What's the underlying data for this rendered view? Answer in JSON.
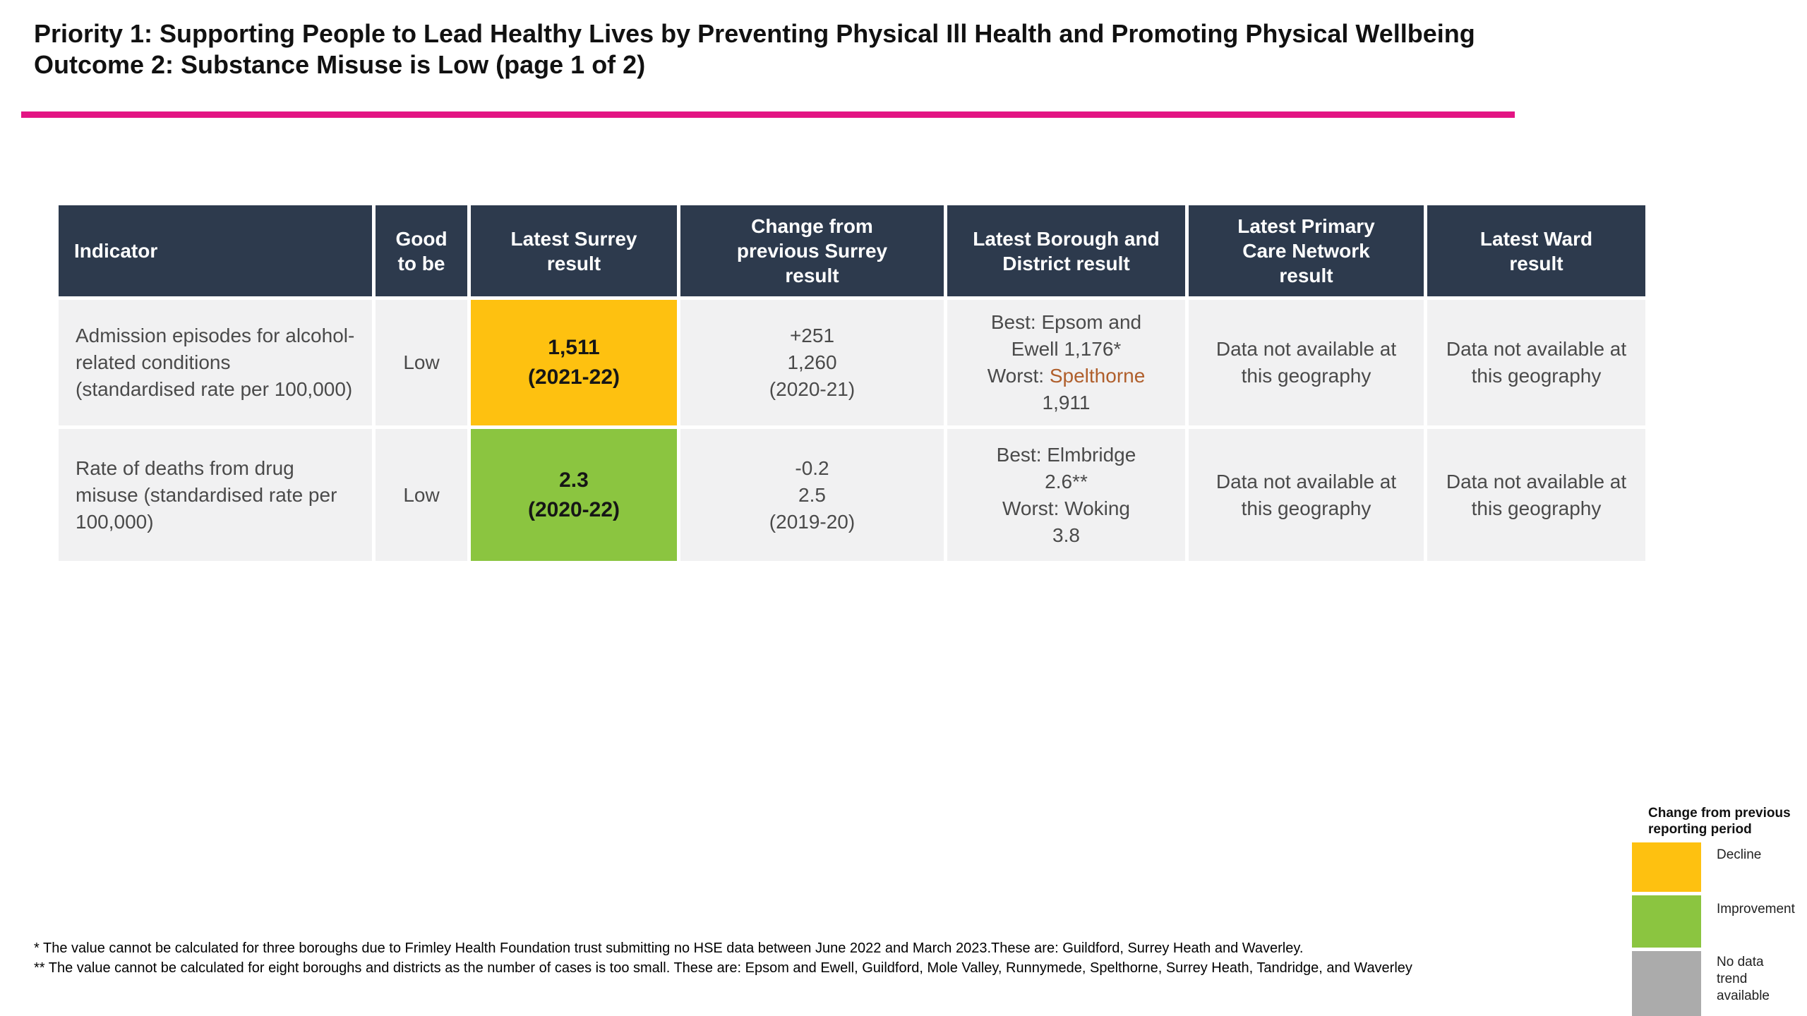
{
  "title": {
    "line1": "Priority 1: Supporting People to Lead Healthy Lives by Preventing Physical Ill Health and Promoting Physical Wellbeing",
    "line2": "Outcome 2: Substance Misuse is Low (page 1 of 2)"
  },
  "colors": {
    "header_bg": "#2d3a4d",
    "row_bg": "#f1f1f2",
    "accent_rule": "#E31483",
    "decline": "#FEC110",
    "improvement": "#8BC540",
    "no_data": "#ABABAB",
    "worst_highlight": "#B05F2C"
  },
  "table": {
    "headers": {
      "indicator": "Indicator",
      "good_to_be": "Good to be",
      "latest_surrey": "Latest Surrey result",
      "change": "Change from previous Surrey result",
      "borough": "Latest Borough and District result",
      "pcn": "Latest Primary Care Network result",
      "ward": "Latest Ward result"
    },
    "rows": [
      {
        "indicator": "Admission episodes for alcohol-related conditions (standardised rate per 100,000)",
        "good_to_be": "Low",
        "surrey_value": "1,511",
        "surrey_period": "(2021-22)",
        "surrey_status": "decline",
        "change": [
          "+251",
          "1,260",
          "(2020-21)"
        ],
        "borough": {
          "best_line1": "Best: Epsom and",
          "best_line2": "Ewell 1,176*",
          "worst_prefix": "Worst: ",
          "worst_highlight": "Spelthorne",
          "worst_value": "1,911"
        },
        "pcn": "Data not available at this geography",
        "ward": "Data not available at this geography"
      },
      {
        "indicator": "Rate of deaths from drug misuse (standardised rate per 100,000)",
        "good_to_be": "Low",
        "surrey_value": "2.3",
        "surrey_period": "(2020-22)",
        "surrey_status": "improvement",
        "change": [
          "-0.2",
          "2.5",
          "(2019-20)"
        ],
        "borough": {
          "best_line1": "Best: Elmbridge",
          "best_line2": "2.6**",
          "worst_line": "Worst: Woking",
          "worst_value": "3.8"
        },
        "pcn": "Data not available at this geography",
        "ward": "Data not available at this geography"
      }
    ]
  },
  "footnotes": [
    "* The value cannot be calculated for three boroughs due to Frimley Health Foundation trust submitting no HSE data between June 2022 and March 2023.These are: Guildford, Surrey Heath and Waverley.",
    "** The value cannot be calculated for eight boroughs and districts as the number of cases is too small. These are: Epsom and Ewell, Guildford, Mole Valley, Runnymede, Spelthorne, Surrey Heath, Tandridge, and Waverley"
  ],
  "legend": {
    "title": "Change from previous reporting period",
    "items": [
      {
        "label": "Decline",
        "color": "#FEC110"
      },
      {
        "label": "Improvement",
        "color": "#8BC540"
      },
      {
        "label": "No data trend available",
        "color": "#ABABAB"
      }
    ]
  }
}
